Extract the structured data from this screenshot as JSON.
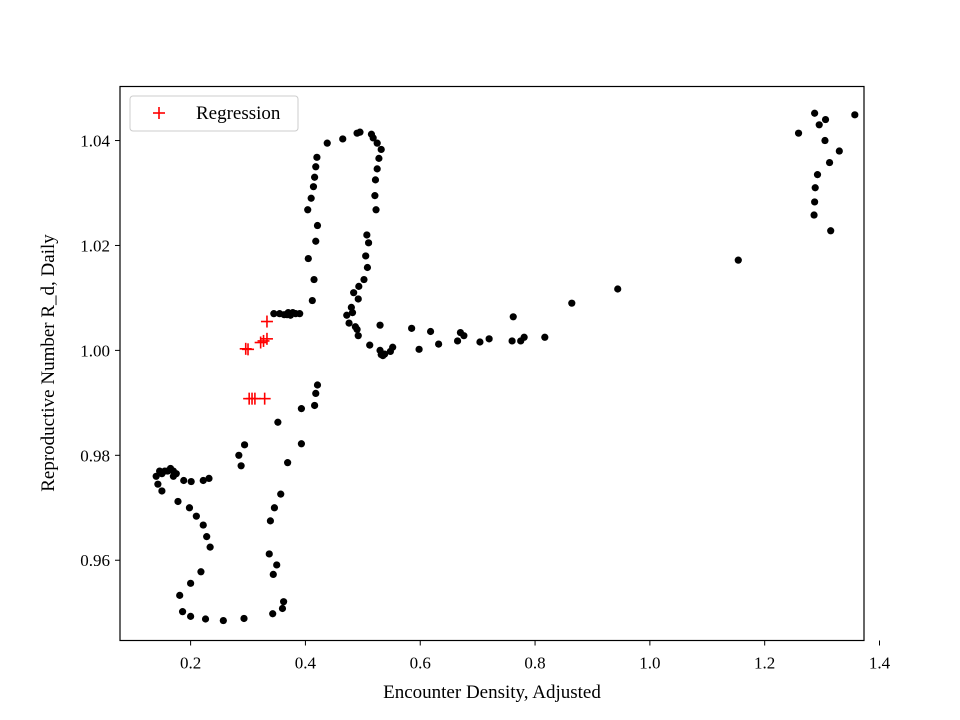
{
  "chart_data": {
    "type": "scatter",
    "title": "",
    "xlabel": "Encounter Density, Adjusted",
    "ylabel": "Reproductive Number R_d, Daily",
    "xlim": [
      0.077,
      1.373
    ],
    "ylim": [
      0.9447,
      1.0503
    ],
    "xticks": [
      {
        "value": 0.2,
        "label": "0.2"
      },
      {
        "value": 0.4,
        "label": "0.4"
      },
      {
        "value": 0.6,
        "label": "0.6"
      },
      {
        "value": 0.8,
        "label": "0.8"
      },
      {
        "value": 1.0,
        "label": "1.0"
      },
      {
        "value": 1.2,
        "label": "1.2"
      },
      {
        "value": 1.4,
        "label": "1.4"
      }
    ],
    "yticks": [
      {
        "value": 0.96,
        "label": "0.96"
      },
      {
        "value": 0.98,
        "label": "0.98"
      },
      {
        "value": 1.0,
        "label": "1.00"
      },
      {
        "value": 1.02,
        "label": "1.02"
      },
      {
        "value": 1.04,
        "label": "1.04"
      }
    ],
    "grid": false,
    "legend_position": "top-left",
    "series": [
      {
        "name": "",
        "marker": "dot",
        "color": "#000000",
        "points": [
          [
            0.14,
            0.976
          ],
          [
            0.143,
            0.9745
          ],
          [
            0.146,
            0.977
          ],
          [
            0.15,
            0.9765
          ],
          [
            0.155,
            0.977
          ],
          [
            0.16,
            0.977
          ],
          [
            0.165,
            0.9775
          ],
          [
            0.17,
            0.977
          ],
          [
            0.175,
            0.9765
          ],
          [
            0.17,
            0.976
          ],
          [
            0.15,
            0.9732
          ],
          [
            0.178,
            0.9712
          ],
          [
            0.188,
            0.9752
          ],
          [
            0.198,
            0.97
          ],
          [
            0.201,
            0.975
          ],
          [
            0.21,
            0.9684
          ],
          [
            0.222,
            0.9667
          ],
          [
            0.228,
            0.9645
          ],
          [
            0.234,
            0.9625
          ],
          [
            0.222,
            0.9752
          ],
          [
            0.232,
            0.9756
          ],
          [
            0.218,
            0.9578
          ],
          [
            0.2,
            0.9556
          ],
          [
            0.181,
            0.9533
          ],
          [
            0.186,
            0.9502
          ],
          [
            0.2,
            0.9493
          ],
          [
            0.226,
            0.9488
          ],
          [
            0.257,
            0.9485
          ],
          [
            0.293,
            0.9489
          ],
          [
            0.343,
            0.9498
          ],
          [
            0.36,
            0.9508
          ],
          [
            0.362,
            0.9521
          ],
          [
            0.35,
            0.9591
          ],
          [
            0.344,
            0.9573
          ],
          [
            0.337,
            0.9612
          ],
          [
            0.339,
            0.9675
          ],
          [
            0.346,
            0.97
          ],
          [
            0.357,
            0.9726
          ],
          [
            0.369,
            0.9786
          ],
          [
            0.393,
            0.9822
          ],
          [
            0.393,
            0.9889
          ],
          [
            0.416,
            0.9895
          ],
          [
            0.418,
            0.9918
          ],
          [
            0.421,
            0.9934
          ],
          [
            0.352,
            0.9863
          ],
          [
            0.294,
            0.982
          ],
          [
            0.284,
            0.98
          ],
          [
            0.288,
            0.978
          ],
          [
            0.345,
            1.007
          ],
          [
            0.355,
            1.007
          ],
          [
            0.363,
            1.0068
          ],
          [
            0.368,
            1.0068
          ],
          [
            0.37,
            1.0072
          ],
          [
            0.374,
            1.0067
          ],
          [
            0.378,
            1.0072
          ],
          [
            0.383,
            1.007
          ],
          [
            0.39,
            1.007
          ],
          [
            0.412,
            1.0095
          ],
          [
            0.415,
            1.0135
          ],
          [
            0.405,
            1.0175
          ],
          [
            0.418,
            1.0208
          ],
          [
            0.421,
            1.0238
          ],
          [
            0.404,
            1.0268
          ],
          [
            0.41,
            1.029
          ],
          [
            0.414,
            1.0312
          ],
          [
            0.416,
            1.033
          ],
          [
            0.418,
            1.035
          ],
          [
            0.42,
            1.0368
          ],
          [
            0.438,
            1.0395
          ],
          [
            0.465,
            1.0403
          ],
          [
            0.49,
            1.0414
          ],
          [
            0.495,
            1.0416
          ],
          [
            0.515,
            1.0412
          ],
          [
            0.518,
            1.0405
          ],
          [
            0.525,
            1.0395
          ],
          [
            0.532,
            1.0383
          ],
          [
            0.528,
            1.0366
          ],
          [
            0.525,
            1.0346
          ],
          [
            0.522,
            1.0325
          ],
          [
            0.521,
            1.0295
          ],
          [
            0.523,
            1.0268
          ],
          [
            0.507,
            1.022
          ],
          [
            0.51,
            1.0205
          ],
          [
            0.505,
            1.018
          ],
          [
            0.508,
            1.0158
          ],
          [
            0.502,
            1.0135
          ],
          [
            0.493,
            1.0122
          ],
          [
            0.484,
            1.011
          ],
          [
            0.492,
            1.0098
          ],
          [
            0.48,
            1.0082
          ],
          [
            0.472,
            1.0067
          ],
          [
            0.476,
            1.0052
          ],
          [
            0.482,
            1.0072
          ],
          [
            0.487,
            1.0045
          ],
          [
            0.49,
            1.004
          ],
          [
            0.492,
            1.0028
          ],
          [
            0.512,
            1.001
          ],
          [
            0.53,
            1.0
          ],
          [
            0.532,
            0.9992
          ],
          [
            0.535,
            0.999
          ],
          [
            0.538,
            0.9993
          ],
          [
            0.53,
            1.0048
          ],
          [
            0.548,
            0.9998
          ],
          [
            0.552,
            1.0006
          ],
          [
            0.585,
            1.0042
          ],
          [
            0.598,
            1.0002
          ],
          [
            0.618,
            1.0036
          ],
          [
            0.632,
            1.0012
          ],
          [
            0.665,
            1.0018
          ],
          [
            0.67,
            1.0034
          ],
          [
            0.676,
            1.0028
          ],
          [
            0.704,
            1.0016
          ],
          [
            0.72,
            1.0022
          ],
          [
            0.76,
            1.0018
          ],
          [
            0.762,
            1.0064
          ],
          [
            0.775,
            1.0018
          ],
          [
            0.781,
            1.0025
          ],
          [
            0.817,
            1.0025
          ],
          [
            0.864,
            1.009
          ],
          [
            0.944,
            1.0117
          ],
          [
            1.154,
            1.0172
          ],
          [
            1.259,
            1.0414
          ],
          [
            1.287,
            1.0452
          ],
          [
            1.295,
            1.043
          ],
          [
            1.306,
            1.044
          ],
          [
            1.305,
            1.04
          ],
          [
            1.313,
            1.0358
          ],
          [
            1.33,
            1.038
          ],
          [
            1.357,
            1.0449
          ],
          [
            1.292,
            1.0335
          ],
          [
            1.288,
            1.031
          ],
          [
            1.287,
            1.0283
          ],
          [
            1.286,
            1.0258
          ],
          [
            1.315,
            1.0228
          ]
        ]
      },
      {
        "name": "Regression",
        "marker": "plus",
        "color": "#ff0000",
        "points": [
          [
            0.296,
            1.0003
          ],
          [
            0.3,
            1.0002
          ],
          [
            0.322,
            1.0015
          ],
          [
            0.327,
            1.0018
          ],
          [
            0.333,
            1.0022
          ],
          [
            0.333,
            1.0055
          ],
          [
            0.302,
            0.9908
          ],
          [
            0.307,
            0.9908
          ],
          [
            0.312,
            0.9908
          ],
          [
            0.329,
            0.9908
          ]
        ]
      }
    ]
  }
}
